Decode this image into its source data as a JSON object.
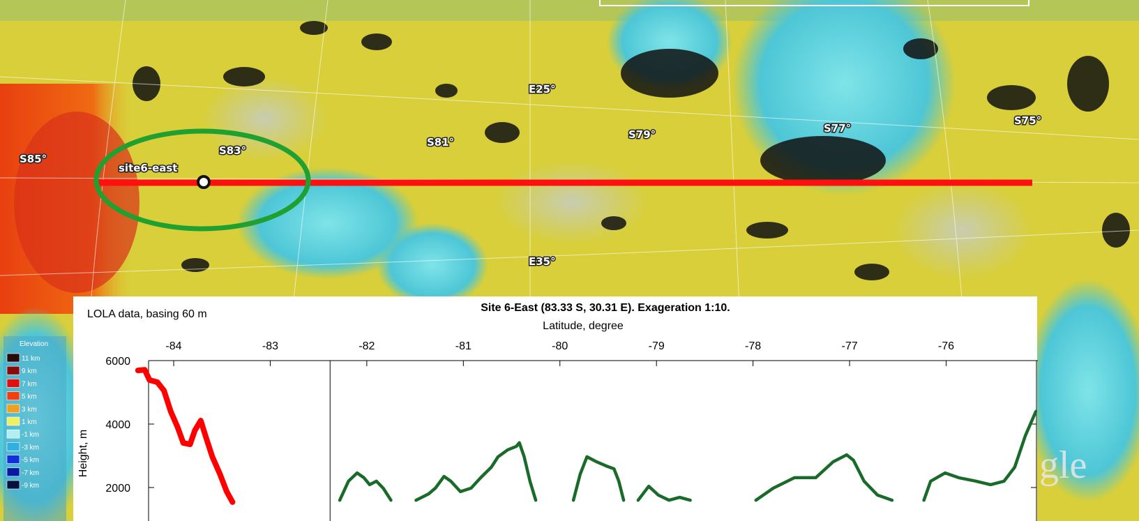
{
  "map": {
    "labels": [
      "S85°",
      "S83°",
      "S81°",
      "S79°",
      "S77°",
      "S75°",
      "E25°",
      "E35°",
      "site6-east"
    ],
    "watermark": "gle",
    "elevation_legend": {
      "title": "Elevation",
      "entries": [
        "11 km",
        "9 km",
        "7 km",
        "5 km",
        "3 km",
        "1 km",
        "-1 km",
        "-3 km",
        "-5 km",
        "-7 km",
        "-9 km"
      ]
    }
  },
  "chart_data": {
    "type": "line",
    "title": "Site 6-East (83.33 S,  30.31 E). Exageration 1:10.",
    "annotation": "LOLA data, basing 60 m",
    "x_label": "Latitude, degree",
    "y_label": "Height, m",
    "xlim": [
      -84.26,
      -75.05
    ],
    "xticks": [
      -84,
      -83,
      -82,
      -81,
      -80,
      -79,
      -78,
      -77,
      -76
    ],
    "ylim": [
      1000,
      6000
    ],
    "yticks": [
      6000,
      4000,
      2000
    ],
    "reference_lines": [
      -82.38
    ],
    "series": [
      {
        "color": "#ff0000",
        "x": [
          -84.37,
          -84.3,
          -84.25,
          -84.17,
          -84.1,
          -84.03,
          -83.96,
          -83.9,
          -83.83,
          -83.78,
          -83.72,
          -83.67,
          -83.6,
          -83.52,
          -83.45,
          -83.39
        ],
        "values": [
          5690,
          5710,
          5385,
          5320,
          5055,
          4395,
          3910,
          3405,
          3360,
          3800,
          4110,
          3625,
          2970,
          2420,
          1870,
          1540
        ]
      },
      {
        "color": "#1a6b2a",
        "x": [
          -82.28,
          -82.19,
          -82.1,
          -82.03,
          -81.97,
          -81.9,
          -81.83,
          -81.75,
          -81.62,
          -81.49,
          -81.36,
          -81.29,
          -81.2,
          -81.13,
          -81.03,
          -80.92,
          -80.82,
          -80.71,
          -80.64,
          -80.54,
          -80.45,
          -80.42,
          -80.37,
          -80.31,
          -80.25,
          -80.05,
          -79.86,
          -79.79,
          -79.72,
          -79.62,
          -79.52,
          -79.44,
          -79.39,
          -79.34,
          -79.26,
          -79.19,
          -79.08,
          -78.98,
          -78.87,
          -78.76,
          -78.65,
          -78.3,
          -77.97,
          -77.79,
          -77.57,
          -77.35,
          -77.17,
          -77.03,
          -76.96,
          -76.85,
          -76.71,
          -76.56,
          -76.4,
          -76.23,
          -76.16,
          -76.01,
          -75.87,
          -75.69,
          -75.54,
          -75.4,
          -75.29,
          -75.18,
          -75.07
        ],
        "values": [
          1600,
          2200,
          2460,
          2310,
          2090,
          2200,
          1980,
          1600,
          null,
          1600,
          1800,
          1980,
          2350,
          2200,
          1870,
          1980,
          2310,
          2640,
          2970,
          3190,
          3300,
          3410,
          2970,
          2200,
          1600,
          null,
          1600,
          2420,
          2970,
          2810,
          2680,
          2590,
          2200,
          1600,
          null,
          1600,
          2040,
          1760,
          1600,
          1690,
          1600,
          null,
          1600,
          1980,
          2310,
          2310,
          2810,
          3030,
          2860,
          2200,
          1760,
          1600,
          null,
          1600,
          2200,
          2460,
          2310,
          2200,
          2090,
          2200,
          2640,
          3630,
          4400
        ]
      }
    ]
  }
}
